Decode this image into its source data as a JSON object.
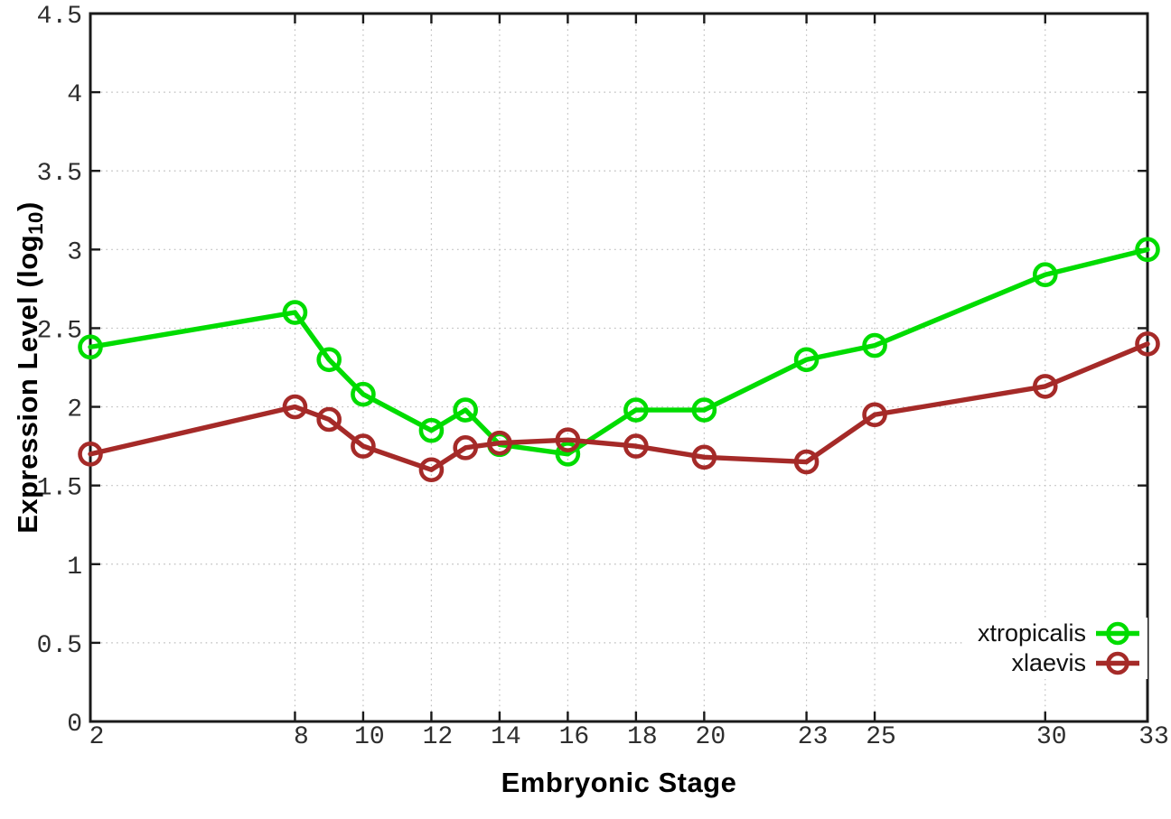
{
  "chart": {
    "xlabel": "Embryonic Stage",
    "ylabel_main": "Expression Level (log",
    "ylabel_sub": "10",
    "ylabel_close": ")"
  },
  "chart_data": {
    "type": "line",
    "title": "",
    "xlabel": "Embryonic Stage",
    "ylabel": "Expression Level (log10)",
    "x": [
      2,
      8,
      9,
      10,
      12,
      13,
      14,
      16,
      18,
      20,
      23,
      25,
      30,
      33
    ],
    "series": [
      {
        "name": "xtropicalis",
        "color": "#00DC00",
        "values": [
          2.38,
          2.6,
          2.3,
          2.08,
          1.85,
          1.98,
          1.76,
          1.7,
          1.98,
          1.98,
          2.3,
          2.39,
          2.84,
          3.0
        ]
      },
      {
        "name": "xlaevis",
        "color": "#A52A28",
        "values": [
          1.7,
          2.0,
          1.92,
          1.75,
          1.6,
          1.74,
          1.77,
          1.79,
          1.75,
          1.68,
          1.65,
          1.95,
          2.13,
          2.4
        ]
      }
    ],
    "xticks": [
      2,
      8,
      10,
      12,
      14,
      16,
      18,
      20,
      23,
      25,
      30,
      33
    ],
    "xtick_labels": [
      "2",
      "8",
      "10",
      "12",
      "14",
      "16",
      "18",
      "20",
      "23",
      "25",
      "30",
      "33"
    ],
    "yticks": [
      0,
      0.5,
      1,
      1.5,
      2,
      2.5,
      3,
      3.5,
      4,
      4.5
    ],
    "ytick_labels": [
      "0",
      "0.5",
      "1",
      "1.5",
      "2",
      "2.5",
      "3",
      "3.5",
      "4",
      "4.5"
    ],
    "xlim": [
      2,
      33
    ],
    "ylim": [
      0,
      4.5
    ],
    "grid": true,
    "legend_position": "inside-bottom-right",
    "marker": "open-circle",
    "colors": {
      "grid": "#BDBDBD",
      "axis": "#1A1A1A",
      "tick_text": "#2E2E2E"
    }
  }
}
